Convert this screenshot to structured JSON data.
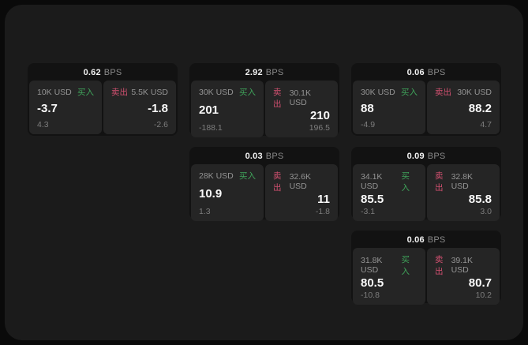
{
  "labels": {
    "bps": "BPS",
    "buy": "买入",
    "sell": "卖出"
  },
  "colors": {
    "buy_green": "#3fa35a",
    "sell_red": "#d15070",
    "page_bg": "#1b1b1b",
    "card_bg": "#121212",
    "panel_bg": "#252525"
  },
  "cards": [
    {
      "bps_value": "0.62",
      "grid_position": {
        "row": 1,
        "col": 1
      },
      "buy": {
        "amount": "10K USD",
        "value": "-3.7",
        "sub_value": "4.3"
      },
      "sell": {
        "amount": "5.5K USD",
        "value": "-1.8",
        "sub_value": "-2.6"
      }
    },
    {
      "bps_value": "2.92",
      "grid_position": {
        "row": 1,
        "col": 2
      },
      "buy": {
        "amount": "30K USD",
        "value": "201",
        "sub_value": "-188.1"
      },
      "sell": {
        "amount": "30.1K USD",
        "value": "210",
        "sub_value": "196.5"
      }
    },
    {
      "bps_value": "0.06",
      "grid_position": {
        "row": 1,
        "col": 3
      },
      "buy": {
        "amount": "30K USD",
        "value": "88",
        "sub_value": "-4.9"
      },
      "sell": {
        "amount": "30K USD",
        "value": "88.2",
        "sub_value": "4.7"
      }
    },
    {
      "bps_value": "0.03",
      "grid_position": {
        "row": 2,
        "col": 2
      },
      "buy": {
        "amount": "28K USD",
        "value": "10.9",
        "sub_value": "1.3"
      },
      "sell": {
        "amount": "32.6K USD",
        "value": "11",
        "sub_value": "-1.8"
      }
    },
    {
      "bps_value": "0.09",
      "grid_position": {
        "row": 2,
        "col": 3
      },
      "buy": {
        "amount": "34.1K USD",
        "value": "85.5",
        "sub_value": "-3.1"
      },
      "sell": {
        "amount": "32.8K USD",
        "value": "85.8",
        "sub_value": "3.0"
      }
    },
    {
      "bps_value": "0.06",
      "grid_position": {
        "row": 3,
        "col": 3
      },
      "buy": {
        "amount": "31.8K USD",
        "value": "80.5",
        "sub_value": "-10.8"
      },
      "sell": {
        "amount": "39.1K USD",
        "value": "80.7",
        "sub_value": "10.2"
      }
    }
  ]
}
